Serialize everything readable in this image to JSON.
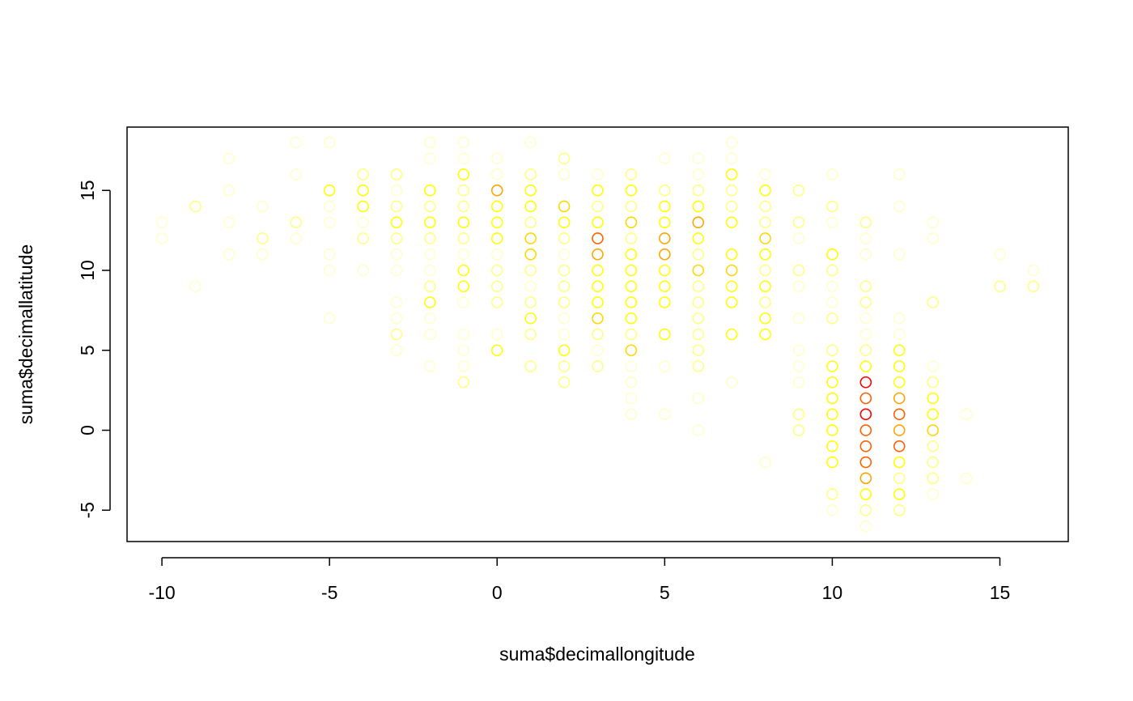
{
  "chart_data": {
    "type": "scatter",
    "title": "",
    "xlabel": "suma$decimallongitude",
    "ylabel": "suma$decimallatitude",
    "xlim": [
      -11.04,
      17.04
    ],
    "ylim": [
      -6.96,
      18.96
    ],
    "x_ticks": [
      -10,
      -5,
      0,
      5,
      10,
      15
    ],
    "y_ticks": [
      -5,
      0,
      5,
      10,
      15
    ],
    "x_tick_labels": [
      "-10",
      "-5",
      "0",
      "5",
      "10",
      "15"
    ],
    "y_tick_labels": [
      "-5",
      "0",
      "5",
      "10",
      "15"
    ],
    "grid": false,
    "legend": "none",
    "marker": "open-circle",
    "color_scale": "heat (light yellow = low density, yellow, orange, red = high density)",
    "palette": [
      "#FFFFC8",
      "#FFFF80",
      "#FFFF00",
      "#FFD700",
      "#FFA500",
      "#FF6000",
      "#FF0000"
    ],
    "points": [
      {
        "x": -10,
        "y": 13,
        "level": 0
      },
      {
        "x": -10,
        "y": 12,
        "level": 0
      },
      {
        "x": -9,
        "y": 14,
        "level": 1
      },
      {
        "x": -9,
        "y": 9,
        "level": 0
      },
      {
        "x": -8,
        "y": 17,
        "level": 0
      },
      {
        "x": -8,
        "y": 15,
        "level": 0
      },
      {
        "x": -8,
        "y": 13,
        "level": 0
      },
      {
        "x": -8,
        "y": 11,
        "level": 0
      },
      {
        "x": -7,
        "y": 14,
        "level": 0
      },
      {
        "x": -7,
        "y": 12,
        "level": 1
      },
      {
        "x": -7,
        "y": 11,
        "level": 0
      },
      {
        "x": -6,
        "y": 18,
        "level": 0
      },
      {
        "x": -6,
        "y": 16,
        "level": 0
      },
      {
        "x": -6,
        "y": 13,
        "level": 1
      },
      {
        "x": -6,
        "y": 12,
        "level": 0
      },
      {
        "x": -5,
        "y": 18,
        "level": 0
      },
      {
        "x": -5,
        "y": 15,
        "level": 2
      },
      {
        "x": -5,
        "y": 14,
        "level": 0
      },
      {
        "x": -5,
        "y": 13,
        "level": 0
      },
      {
        "x": -5,
        "y": 11,
        "level": 0
      },
      {
        "x": -5,
        "y": 10,
        "level": 0
      },
      {
        "x": -5,
        "y": 7,
        "level": 0
      },
      {
        "x": -4,
        "y": 16,
        "level": 1
      },
      {
        "x": -4,
        "y": 15,
        "level": 2
      },
      {
        "x": -4,
        "y": 14,
        "level": 2
      },
      {
        "x": -4,
        "y": 13,
        "level": 0
      },
      {
        "x": -4,
        "y": 12,
        "level": 1
      },
      {
        "x": -4,
        "y": 10,
        "level": 0
      },
      {
        "x": -3,
        "y": 16,
        "level": 1
      },
      {
        "x": -3,
        "y": 15,
        "level": 0
      },
      {
        "x": -3,
        "y": 14,
        "level": 1
      },
      {
        "x": -3,
        "y": 13,
        "level": 2
      },
      {
        "x": -3,
        "y": 12,
        "level": 1
      },
      {
        "x": -3,
        "y": 11,
        "level": 0
      },
      {
        "x": -3,
        "y": 10,
        "level": 0
      },
      {
        "x": -3,
        "y": 8,
        "level": 0
      },
      {
        "x": -3,
        "y": 7,
        "level": 0
      },
      {
        "x": -3,
        "y": 6,
        "level": 1
      },
      {
        "x": -3,
        "y": 5,
        "level": 0
      },
      {
        "x": -2,
        "y": 18,
        "level": 0
      },
      {
        "x": -2,
        "y": 17,
        "level": 0
      },
      {
        "x": -2,
        "y": 15,
        "level": 2
      },
      {
        "x": -2,
        "y": 14,
        "level": 1
      },
      {
        "x": -2,
        "y": 13,
        "level": 2
      },
      {
        "x": -2,
        "y": 12,
        "level": 1
      },
      {
        "x": -2,
        "y": 11,
        "level": 0
      },
      {
        "x": -2,
        "y": 10,
        "level": 0
      },
      {
        "x": -2,
        "y": 9,
        "level": 1
      },
      {
        "x": -2,
        "y": 8,
        "level": 2
      },
      {
        "x": -2,
        "y": 7,
        "level": 0
      },
      {
        "x": -2,
        "y": 6,
        "level": 0
      },
      {
        "x": -2,
        "y": 4,
        "level": 0
      },
      {
        "x": -1,
        "y": 18,
        "level": 0
      },
      {
        "x": -1,
        "y": 17,
        "level": 0
      },
      {
        "x": -1,
        "y": 16,
        "level": 2
      },
      {
        "x": -1,
        "y": 15,
        "level": 1
      },
      {
        "x": -1,
        "y": 14,
        "level": 1
      },
      {
        "x": -1,
        "y": 13,
        "level": 2
      },
      {
        "x": -1,
        "y": 12,
        "level": 1
      },
      {
        "x": -1,
        "y": 11,
        "level": 0
      },
      {
        "x": -1,
        "y": 10,
        "level": 2
      },
      {
        "x": -1,
        "y": 9,
        "level": 2
      },
      {
        "x": -1,
        "y": 8,
        "level": 0
      },
      {
        "x": -1,
        "y": 6,
        "level": 0
      },
      {
        "x": -1,
        "y": 5,
        "level": 0
      },
      {
        "x": -1,
        "y": 4,
        "level": 0
      },
      {
        "x": -1,
        "y": 3,
        "level": 1
      },
      {
        "x": 0,
        "y": 17,
        "level": 0
      },
      {
        "x": 0,
        "y": 16,
        "level": 0
      },
      {
        "x": 0,
        "y": 15,
        "level": 4
      },
      {
        "x": 0,
        "y": 14,
        "level": 2
      },
      {
        "x": 0,
        "y": 13,
        "level": 2
      },
      {
        "x": 0,
        "y": 12,
        "level": 2
      },
      {
        "x": 0,
        "y": 11,
        "level": 0
      },
      {
        "x": 0,
        "y": 10,
        "level": 1
      },
      {
        "x": 0,
        "y": 9,
        "level": 1
      },
      {
        "x": 0,
        "y": 8,
        "level": 1
      },
      {
        "x": 0,
        "y": 6,
        "level": 0
      },
      {
        "x": 0,
        "y": 5,
        "level": 2
      },
      {
        "x": 1,
        "y": 18,
        "level": 0
      },
      {
        "x": 1,
        "y": 16,
        "level": 1
      },
      {
        "x": 1,
        "y": 15,
        "level": 2
      },
      {
        "x": 1,
        "y": 14,
        "level": 2
      },
      {
        "x": 1,
        "y": 13,
        "level": 1
      },
      {
        "x": 1,
        "y": 12,
        "level": 3
      },
      {
        "x": 1,
        "y": 11,
        "level": 3
      },
      {
        "x": 1,
        "y": 10,
        "level": 1
      },
      {
        "x": 1,
        "y": 9,
        "level": 0
      },
      {
        "x": 1,
        "y": 8,
        "level": 1
      },
      {
        "x": 1,
        "y": 7,
        "level": 2
      },
      {
        "x": 1,
        "y": 6,
        "level": 1
      },
      {
        "x": 1,
        "y": 4,
        "level": 1
      },
      {
        "x": 2,
        "y": 17,
        "level": 1
      },
      {
        "x": 2,
        "y": 16,
        "level": 0
      },
      {
        "x": 2,
        "y": 14,
        "level": 3
      },
      {
        "x": 2,
        "y": 13,
        "level": 2
      },
      {
        "x": 2,
        "y": 12,
        "level": 1
      },
      {
        "x": 2,
        "y": 11,
        "level": 0
      },
      {
        "x": 2,
        "y": 10,
        "level": 1
      },
      {
        "x": 2,
        "y": 9,
        "level": 1
      },
      {
        "x": 2,
        "y": 8,
        "level": 1
      },
      {
        "x": 2,
        "y": 7,
        "level": 0
      },
      {
        "x": 2,
        "y": 6,
        "level": 0
      },
      {
        "x": 2,
        "y": 5,
        "level": 2
      },
      {
        "x": 2,
        "y": 4,
        "level": 1
      },
      {
        "x": 2,
        "y": 3,
        "level": 1
      },
      {
        "x": 3,
        "y": 16,
        "level": 0
      },
      {
        "x": 3,
        "y": 15,
        "level": 2
      },
      {
        "x": 3,
        "y": 14,
        "level": 1
      },
      {
        "x": 3,
        "y": 13,
        "level": 2
      },
      {
        "x": 3,
        "y": 12,
        "level": 5
      },
      {
        "x": 3,
        "y": 11,
        "level": 4
      },
      {
        "x": 3,
        "y": 10,
        "level": 2
      },
      {
        "x": 3,
        "y": 9,
        "level": 2
      },
      {
        "x": 3,
        "y": 8,
        "level": 2
      },
      {
        "x": 3,
        "y": 7,
        "level": 3
      },
      {
        "x": 3,
        "y": 6,
        "level": 1
      },
      {
        "x": 3,
        "y": 5,
        "level": 0
      },
      {
        "x": 3,
        "y": 4,
        "level": 1
      },
      {
        "x": 4,
        "y": 16,
        "level": 1
      },
      {
        "x": 4,
        "y": 15,
        "level": 2
      },
      {
        "x": 4,
        "y": 14,
        "level": 1
      },
      {
        "x": 4,
        "y": 13,
        "level": 3
      },
      {
        "x": 4,
        "y": 12,
        "level": 1
      },
      {
        "x": 4,
        "y": 11,
        "level": 2
      },
      {
        "x": 4,
        "y": 10,
        "level": 2
      },
      {
        "x": 4,
        "y": 9,
        "level": 2
      },
      {
        "x": 4,
        "y": 8,
        "level": 2
      },
      {
        "x": 4,
        "y": 7,
        "level": 2
      },
      {
        "x": 4,
        "y": 6,
        "level": 1
      },
      {
        "x": 4,
        "y": 5,
        "level": 3
      },
      {
        "x": 4,
        "y": 4,
        "level": 0
      },
      {
        "x": 4,
        "y": 3,
        "level": 0
      },
      {
        "x": 4,
        "y": 2,
        "level": 0
      },
      {
        "x": 4,
        "y": 1,
        "level": 0
      },
      {
        "x": 5,
        "y": 17,
        "level": 0
      },
      {
        "x": 5,
        "y": 15,
        "level": 1
      },
      {
        "x": 5,
        "y": 14,
        "level": 2
      },
      {
        "x": 5,
        "y": 13,
        "level": 2
      },
      {
        "x": 5,
        "y": 12,
        "level": 4
      },
      {
        "x": 5,
        "y": 11,
        "level": 4
      },
      {
        "x": 5,
        "y": 10,
        "level": 2
      },
      {
        "x": 5,
        "y": 9,
        "level": 2
      },
      {
        "x": 5,
        "y": 8,
        "level": 2
      },
      {
        "x": 5,
        "y": 6,
        "level": 2
      },
      {
        "x": 5,
        "y": 4,
        "level": 0
      },
      {
        "x": 5,
        "y": 1,
        "level": 0
      },
      {
        "x": 6,
        "y": 17,
        "level": 0
      },
      {
        "x": 6,
        "y": 16,
        "level": 0
      },
      {
        "x": 6,
        "y": 15,
        "level": 1
      },
      {
        "x": 6,
        "y": 14,
        "level": 2
      },
      {
        "x": 6,
        "y": 13,
        "level": 4
      },
      {
        "x": 6,
        "y": 12,
        "level": 2
      },
      {
        "x": 6,
        "y": 11,
        "level": 1
      },
      {
        "x": 6,
        "y": 10,
        "level": 3
      },
      {
        "x": 6,
        "y": 9,
        "level": 1
      },
      {
        "x": 6,
        "y": 8,
        "level": 1
      },
      {
        "x": 6,
        "y": 7,
        "level": 1
      },
      {
        "x": 6,
        "y": 6,
        "level": 1
      },
      {
        "x": 6,
        "y": 5,
        "level": 1
      },
      {
        "x": 6,
        "y": 4,
        "level": 1
      },
      {
        "x": 6,
        "y": 2,
        "level": 0
      },
      {
        "x": 6,
        "y": 0,
        "level": 0
      },
      {
        "x": 7,
        "y": 18,
        "level": 0
      },
      {
        "x": 7,
        "y": 17,
        "level": 0
      },
      {
        "x": 7,
        "y": 16,
        "level": 2
      },
      {
        "x": 7,
        "y": 15,
        "level": 1
      },
      {
        "x": 7,
        "y": 14,
        "level": 1
      },
      {
        "x": 7,
        "y": 13,
        "level": 2
      },
      {
        "x": 7,
        "y": 11,
        "level": 2
      },
      {
        "x": 7,
        "y": 10,
        "level": 3
      },
      {
        "x": 7,
        "y": 9,
        "level": 2
      },
      {
        "x": 7,
        "y": 8,
        "level": 2
      },
      {
        "x": 7,
        "y": 6,
        "level": 2
      },
      {
        "x": 7,
        "y": 3,
        "level": 0
      },
      {
        "x": 8,
        "y": 16,
        "level": 0
      },
      {
        "x": 8,
        "y": 15,
        "level": 2
      },
      {
        "x": 8,
        "y": 14,
        "level": 1
      },
      {
        "x": 8,
        "y": 13,
        "level": 1
      },
      {
        "x": 8,
        "y": 12,
        "level": 3
      },
      {
        "x": 8,
        "y": 11,
        "level": 2
      },
      {
        "x": 8,
        "y": 10,
        "level": 1
      },
      {
        "x": 8,
        "y": 9,
        "level": 2
      },
      {
        "x": 8,
        "y": 8,
        "level": 1
      },
      {
        "x": 8,
        "y": 7,
        "level": 2
      },
      {
        "x": 8,
        "y": 6,
        "level": 2
      },
      {
        "x": 8,
        "y": -2,
        "level": 0
      },
      {
        "x": 9,
        "y": 15,
        "level": 1
      },
      {
        "x": 9,
        "y": 13,
        "level": 1
      },
      {
        "x": 9,
        "y": 12,
        "level": 0
      },
      {
        "x": 9,
        "y": 10,
        "level": 1
      },
      {
        "x": 9,
        "y": 9,
        "level": 0
      },
      {
        "x": 9,
        "y": 7,
        "level": 0
      },
      {
        "x": 9,
        "y": 5,
        "level": 0
      },
      {
        "x": 9,
        "y": 4,
        "level": 0
      },
      {
        "x": 9,
        "y": 3,
        "level": 0
      },
      {
        "x": 9,
        "y": 1,
        "level": 1
      },
      {
        "x": 9,
        "y": 0,
        "level": 1
      },
      {
        "x": 10,
        "y": 16,
        "level": 0
      },
      {
        "x": 10,
        "y": 14,
        "level": 1
      },
      {
        "x": 10,
        "y": 13,
        "level": 0
      },
      {
        "x": 10,
        "y": 11,
        "level": 2
      },
      {
        "x": 10,
        "y": 10,
        "level": 1
      },
      {
        "x": 10,
        "y": 9,
        "level": 0
      },
      {
        "x": 10,
        "y": 8,
        "level": 0
      },
      {
        "x": 10,
        "y": 7,
        "level": 1
      },
      {
        "x": 10,
        "y": 5,
        "level": 1
      },
      {
        "x": 10,
        "y": 4,
        "level": 2
      },
      {
        "x": 10,
        "y": 3,
        "level": 2
      },
      {
        "x": 10,
        "y": 2,
        "level": 2
      },
      {
        "x": 10,
        "y": 1,
        "level": 2
      },
      {
        "x": 10,
        "y": 0,
        "level": 2
      },
      {
        "x": 10,
        "y": -1,
        "level": 2
      },
      {
        "x": 10,
        "y": -2,
        "level": 2
      },
      {
        "x": 10,
        "y": -4,
        "level": 1
      },
      {
        "x": 10,
        "y": -5,
        "level": 0
      },
      {
        "x": 11,
        "y": 13,
        "level": 1
      },
      {
        "x": 11,
        "y": 12,
        "level": 0
      },
      {
        "x": 11,
        "y": 11,
        "level": 0
      },
      {
        "x": 11,
        "y": 9,
        "level": 1
      },
      {
        "x": 11,
        "y": 8,
        "level": 1
      },
      {
        "x": 11,
        "y": 7,
        "level": 0
      },
      {
        "x": 11,
        "y": 6,
        "level": 0
      },
      {
        "x": 11,
        "y": 5,
        "level": 1
      },
      {
        "x": 11,
        "y": 4,
        "level": 2
      },
      {
        "x": 11,
        "y": 3,
        "level": 6
      },
      {
        "x": 11,
        "y": 2,
        "level": 5
      },
      {
        "x": 11,
        "y": 1,
        "level": 6
      },
      {
        "x": 11,
        "y": 0,
        "level": 5
      },
      {
        "x": 11,
        "y": -1,
        "level": 5
      },
      {
        "x": 11,
        "y": -2,
        "level": 5
      },
      {
        "x": 11,
        "y": -3,
        "level": 4
      },
      {
        "x": 11,
        "y": -4,
        "level": 2
      },
      {
        "x": 11,
        "y": -5,
        "level": 1
      },
      {
        "x": 11,
        "y": -6,
        "level": 0
      },
      {
        "x": 12,
        "y": 16,
        "level": 0
      },
      {
        "x": 12,
        "y": 14,
        "level": 0
      },
      {
        "x": 12,
        "y": 11,
        "level": 0
      },
      {
        "x": 12,
        "y": 7,
        "level": 0
      },
      {
        "x": 12,
        "y": 6,
        "level": 0
      },
      {
        "x": 12,
        "y": 5,
        "level": 2
      },
      {
        "x": 12,
        "y": 4,
        "level": 2
      },
      {
        "x": 12,
        "y": 3,
        "level": 2
      },
      {
        "x": 12,
        "y": 2,
        "level": 4
      },
      {
        "x": 12,
        "y": 1,
        "level": 5
      },
      {
        "x": 12,
        "y": 0,
        "level": 4
      },
      {
        "x": 12,
        "y": -1,
        "level": 5
      },
      {
        "x": 12,
        "y": -2,
        "level": 2
      },
      {
        "x": 12,
        "y": -3,
        "level": 1
      },
      {
        "x": 12,
        "y": -4,
        "level": 2
      },
      {
        "x": 12,
        "y": -5,
        "level": 1
      },
      {
        "x": 13,
        "y": 13,
        "level": 0
      },
      {
        "x": 13,
        "y": 12,
        "level": 0
      },
      {
        "x": 13,
        "y": 8,
        "level": 1
      },
      {
        "x": 13,
        "y": 4,
        "level": 0
      },
      {
        "x": 13,
        "y": 3,
        "level": 1
      },
      {
        "x": 13,
        "y": 2,
        "level": 2
      },
      {
        "x": 13,
        "y": 1,
        "level": 2
      },
      {
        "x": 13,
        "y": 0,
        "level": 3
      },
      {
        "x": 13,
        "y": -1,
        "level": 1
      },
      {
        "x": 13,
        "y": -2,
        "level": 1
      },
      {
        "x": 13,
        "y": -3,
        "level": 1
      },
      {
        "x": 13,
        "y": -4,
        "level": 0
      },
      {
        "x": 14,
        "y": 1,
        "level": 0
      },
      {
        "x": 14,
        "y": -3,
        "level": 0
      },
      {
        "x": 15,
        "y": 11,
        "level": 0
      },
      {
        "x": 15,
        "y": 9,
        "level": 1
      },
      {
        "x": 16,
        "y": 10,
        "level": 0
      },
      {
        "x": 16,
        "y": 9,
        "level": 1
      }
    ]
  }
}
